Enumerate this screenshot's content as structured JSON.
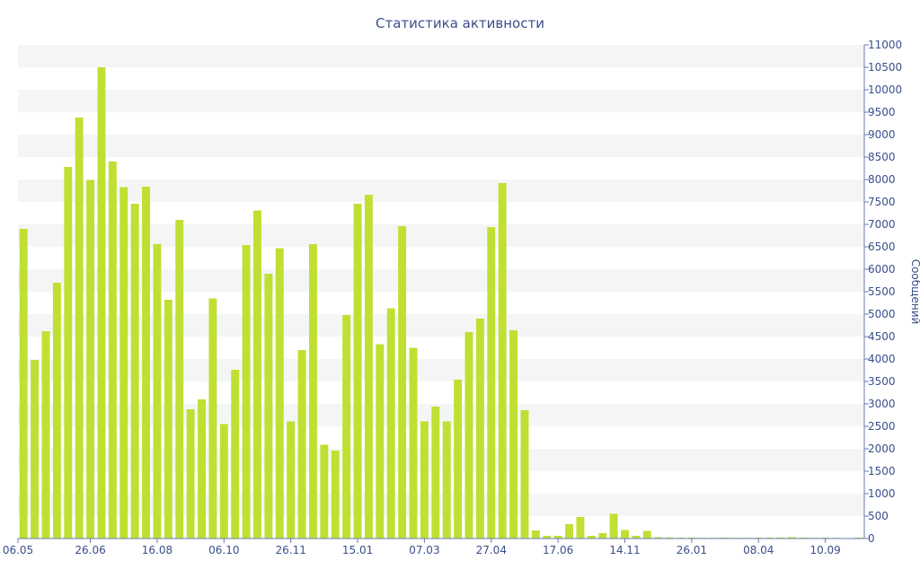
{
  "chart_data": {
    "type": "bar",
    "title": "Статистика активности",
    "ylabel": "Сообщений",
    "xlabel": "",
    "ylim": [
      0,
      11000
    ],
    "yticks": [
      0,
      500,
      1000,
      1500,
      2000,
      2500,
      3000,
      3500,
      4000,
      4500,
      5000,
      5500,
      6000,
      6500,
      7000,
      7500,
      8000,
      8500,
      9000,
      9500,
      10000,
      10500,
      11000
    ],
    "xtick_labels": [
      {
        "index": 0,
        "label": "06.05"
      },
      {
        "index": 6,
        "label": "26.06"
      },
      {
        "index": 12,
        "label": "16.08"
      },
      {
        "index": 18,
        "label": "06.10"
      },
      {
        "index": 24,
        "label": "26.11"
      },
      {
        "index": 30,
        "label": "15.01"
      },
      {
        "index": 36,
        "label": "07.03"
      },
      {
        "index": 42,
        "label": "27.04"
      },
      {
        "index": 48,
        "label": "17.06"
      },
      {
        "index": 54,
        "label": "14.11"
      },
      {
        "index": 60,
        "label": "26.01"
      },
      {
        "index": 66,
        "label": "08.04"
      },
      {
        "index": 72,
        "label": "10.09"
      }
    ],
    "values": [
      6900,
      3980,
      4620,
      5700,
      8280,
      9380,
      7990,
      10500,
      8400,
      7830,
      7460,
      7840,
      6560,
      5320,
      7100,
      2880,
      3100,
      5350,
      2550,
      3760,
      6540,
      7310,
      5900,
      6470,
      2610,
      4200,
      6560,
      2090,
      1960,
      4980,
      7460,
      7660,
      4330,
      5130,
      6960,
      4250,
      2610,
      2940,
      2610,
      3540,
      4600,
      4900,
      6940,
      7920,
      4640,
      2860,
      180,
      60,
      60,
      320,
      480,
      60,
      120,
      550,
      190,
      60,
      170,
      30,
      25,
      20,
      20,
      15,
      15,
      20,
      15,
      15,
      20,
      20,
      25,
      30,
      20,
      15,
      20,
      15,
      10,
      20
    ],
    "grid": true,
    "legend": "none",
    "colors": {
      "bar": "#bfe032",
      "text": "#3a4f8a",
      "band": "#f5f5f5",
      "axis": "#6a7bb0"
    }
  }
}
